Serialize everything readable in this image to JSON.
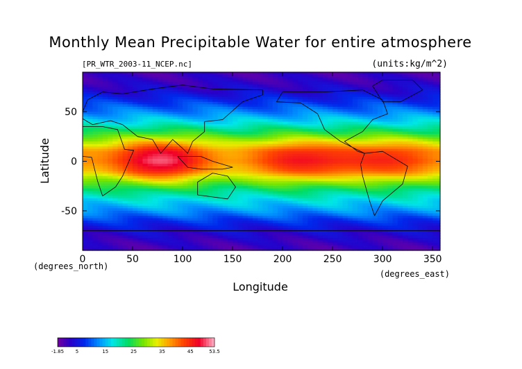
{
  "chart_data": {
    "type": "heatmap",
    "title": "Monthly Mean Precipitable Water for entire atmosphere",
    "subtitle_left": "[PR_WTR_2003-11_NCEP.nc]",
    "subtitle_right": "(units:kg/m^2)",
    "xlabel": "Longitude",
    "ylabel": "Latitude",
    "x_unit_label": "(degrees_east)",
    "y_unit_label": "(degrees_north)",
    "xlim": [
      0,
      357.5
    ],
    "ylim": [
      -90,
      90
    ],
    "x_ticks": [
      "0",
      "50",
      "100",
      "150",
      "200",
      "250",
      "300",
      "350"
    ],
    "y_ticks": [
      "50",
      "0",
      "-50"
    ],
    "x_tick_values": [
      0,
      50,
      100,
      150,
      200,
      250,
      300,
      350
    ],
    "y_tick_values": [
      50,
      0,
      -50
    ],
    "colorbar": {
      "min": -1.85,
      "max": 53.5,
      "tick_labels": [
        "-1.85",
        "5",
        "15",
        "25",
        "35",
        "45",
        "53.5"
      ],
      "tick_values": [
        -1.85,
        5,
        15,
        25,
        35,
        45,
        53.5
      ]
    },
    "zonal_mean_profile": {
      "latitude": [
        -90,
        -80,
        -70,
        -60,
        -50,
        -40,
        -30,
        -20,
        -10,
        0,
        10,
        20,
        30,
        40,
        50,
        60,
        70,
        80,
        90
      ],
      "value": [
        1,
        2,
        4,
        8,
        13,
        17,
        22,
        30,
        40,
        44,
        42,
        33,
        24,
        17,
        12,
        8,
        4,
        2,
        1
      ]
    },
    "grid": false,
    "legend": "colorbar-bottom-left"
  }
}
